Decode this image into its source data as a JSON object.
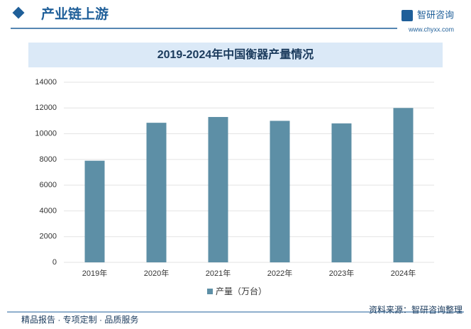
{
  "header": {
    "section": "产业链上游",
    "brand": "智研咨询",
    "url": "www.chyxx.com"
  },
  "chart_data": {
    "type": "bar",
    "title": "2019-2024年中国衡器产量情况",
    "categories": [
      "2019年",
      "2020年",
      "2021年",
      "2022年",
      "2023年",
      "2024年"
    ],
    "series": [
      {
        "name": "产量（万台）",
        "color": "#5d8fa6",
        "values": [
          7900,
          10850,
          11300,
          11000,
          10800,
          12000
        ]
      }
    ],
    "ylim": [
      0,
      14000
    ],
    "yticks": [
      0,
      2000,
      4000,
      6000,
      8000,
      10000,
      12000,
      14000
    ],
    "grid": true
  },
  "footer": {
    "slogan": "精品报告 · 专项定制 · 品质服务",
    "source": "资料来源：智研咨询整理"
  }
}
